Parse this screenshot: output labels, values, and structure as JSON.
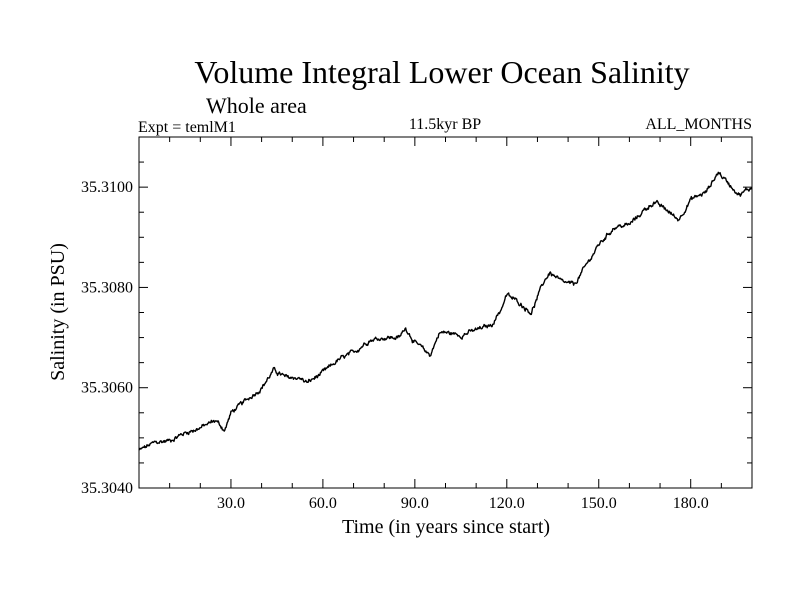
{
  "chart_data": {
    "type": "line",
    "title": "Volume Integral Lower Ocean Salinity",
    "subtitle": "Whole area",
    "experiment": "Expt = temlM1",
    "period": "11.5kyr BP",
    "months": "ALL_MONTHS",
    "xlabel": "Time (in years since start)",
    "ylabel": "Salinity (in PSU)",
    "xlim": [
      0,
      200
    ],
    "ylim": [
      35.304,
      35.311
    ],
    "x_major_ticks": [
      30,
      60,
      90,
      120,
      150,
      180
    ],
    "x_tick_labels": [
      "30.0",
      "60.0",
      "90.0",
      "120.0",
      "150.0",
      "180.0"
    ],
    "x_minor_step": 10,
    "y_major_ticks": [
      35.304,
      35.306,
      35.308,
      35.31
    ],
    "y_tick_labels": [
      "35.3040",
      "35.3060",
      "35.3080",
      "35.3100"
    ],
    "y_minor_step": 0.0005,
    "line_color": "#000000",
    "series": [
      {
        "name": "Salinity",
        "x": [
          0,
          5,
          10,
          15,
          20,
          25,
          28,
          30,
          35,
          40,
          44,
          48,
          52,
          55,
          60,
          65,
          70,
          75,
          80,
          85,
          87,
          90,
          95,
          98,
          100,
          105,
          110,
          115,
          118,
          120,
          124,
          128,
          132,
          134,
          138,
          142,
          146,
          150,
          155,
          160,
          165,
          168,
          172,
          176,
          180,
          185,
          189,
          192,
          196,
          200
        ],
        "y": [
          35.30475,
          35.3049,
          35.30495,
          35.3051,
          35.3052,
          35.30535,
          35.30515,
          35.3055,
          35.30575,
          35.306,
          35.30635,
          35.3062,
          35.3062,
          35.3061,
          35.3063,
          35.30655,
          35.3067,
          35.30695,
          35.307,
          35.307,
          35.3072,
          35.3069,
          35.30665,
          35.3071,
          35.3071,
          35.30705,
          35.30715,
          35.30725,
          35.30755,
          35.30785,
          35.3077,
          35.3075,
          35.3081,
          35.3083,
          35.3081,
          35.30805,
          35.30845,
          35.30885,
          35.3092,
          35.30925,
          35.30955,
          35.3097,
          35.30955,
          35.30935,
          35.30975,
          35.3099,
          35.3103,
          35.3101,
          35.30985,
          35.31
        ]
      }
    ]
  }
}
